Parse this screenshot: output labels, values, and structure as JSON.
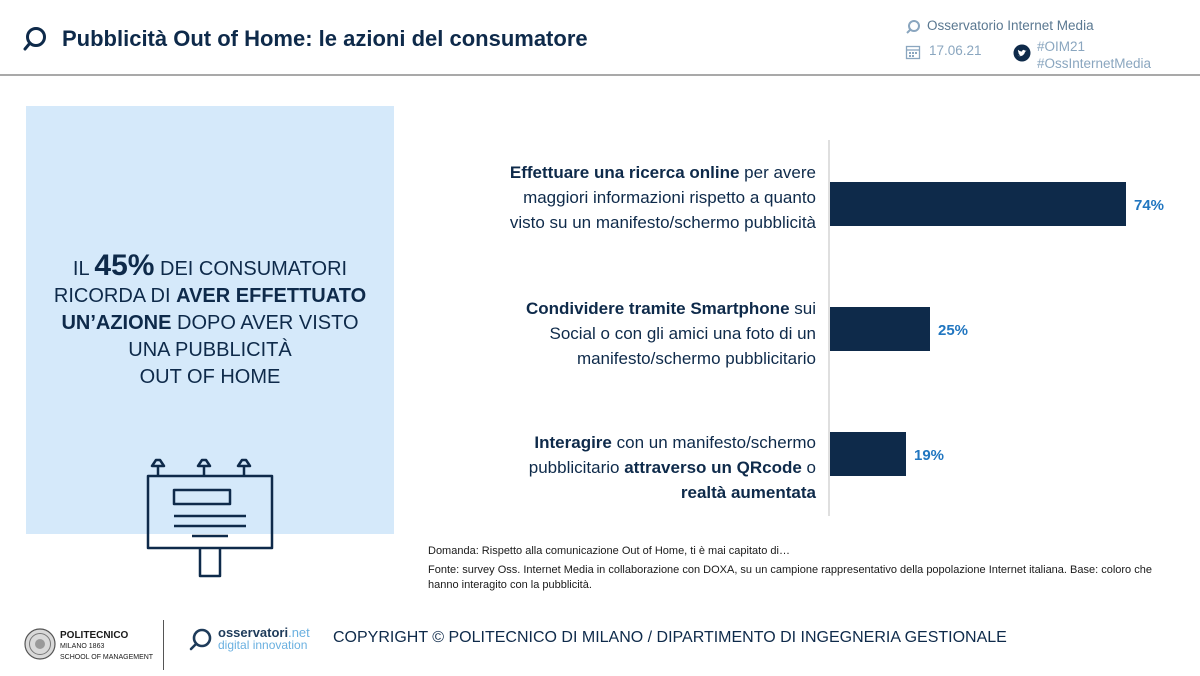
{
  "header": {
    "title": "Pubblicità Out of Home: le azioni del consumatore",
    "org": "Osservatorio Internet Media",
    "date": "17.06.21",
    "hashtag1": "#OIM21",
    "hashtag2": "#OssInternetMedia"
  },
  "callout": {
    "l1a": "IL ",
    "l1b": "45%",
    "l1c": " DEI CONSUMATORI",
    "l2a": "RICORDA DI ",
    "l2b": "AVER EFFETTUATO",
    "l3a": "UN’AZIONE",
    "l3b": " DOPO AVER VISTO",
    "l4": "UNA PUBBLICITÀ",
    "l5": "OUT OF HOME"
  },
  "chart_data": {
    "type": "bar",
    "orientation": "horizontal",
    "categories": [
      "Effettuare una ricerca online per avere maggiori informazioni rispetto a quanto visto su un manifesto/schermo pubblicità",
      "Condividere tramite Smartphone sui Social o con gli amici una foto di un manifesto/schermo pubblicitario",
      "Interagire con un manifesto/schermo pubblicitario attraverso un QRcode o realtà aumentata"
    ],
    "values": [
      74,
      25,
      19
    ],
    "value_labels": [
      "74%",
      "25%",
      "19%"
    ],
    "xlim": [
      0,
      100
    ],
    "bar_color": "#0e2a4a",
    "label_color": "#2176c0"
  },
  "labels": [
    {
      "l1b": "Effettuare una ricerca online",
      "l1n": " per avere",
      "l2": "maggiori informazioni rispetto a quanto",
      "l3": "visto su un manifesto/schermo pubblicità"
    },
    {
      "l1b": "Condividere tramite Smartphone",
      "l1n": " sui",
      "l2": "Social o con gli amici una foto di un",
      "l3": "manifesto/schermo pubblicitario"
    },
    {
      "l1b": "Interagire",
      "l1n": " con un manifesto/schermo",
      "l2n": "pubblicitario ",
      "l2b": "attraverso un QRcode",
      "l2n2": " o",
      "l3b": "realtà aumentata"
    }
  ],
  "notes": {
    "question": "Domanda: Rispetto alla comunicazione Out of Home, ti è mai capitato di…",
    "source": "Fonte: survey Oss. Internet Media in collaborazione con DOXA, su un campione rappresentativo della popolazione Internet italiana.  Base: coloro che hanno interagito con la pubblicità."
  },
  "footer": {
    "polimi_name": "POLITECNICO",
    "polimi_sub1": "MILANO 1863",
    "polimi_sub2": "SCHOOL OF MANAGEMENT",
    "oss_name": "osservatori",
    "oss_net": ".net",
    "oss_sub": "digital innovation",
    "copyright": "COPYRIGHT © POLITECNICO DI MILANO / DIPARTIMENTO DI INGEGNERIA GESTIONALE"
  },
  "colors": {
    "navy": "#0e2a4a",
    "light_blue_panel": "#d5e9fa",
    "value_blue": "#2176c0",
    "meta_gray_blue": "#8aa6bf"
  }
}
